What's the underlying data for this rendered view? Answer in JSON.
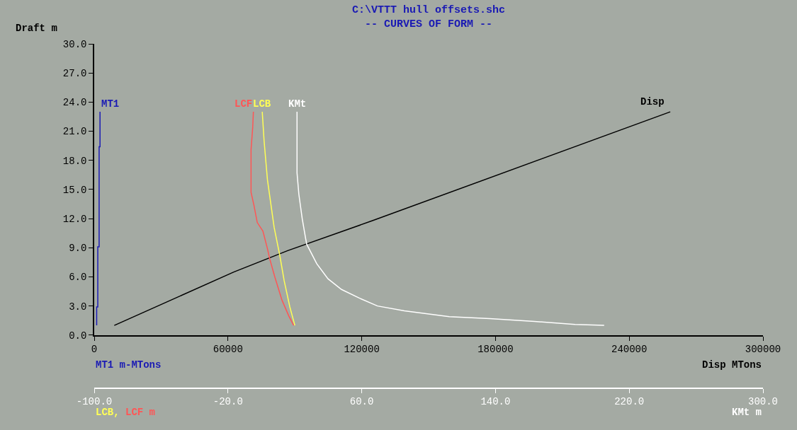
{
  "chart_data": {
    "type": "line",
    "title": "C:\\VTTT hull offsets.shc",
    "subtitle": "-- CURVES OF FORM --",
    "ylabel": "Draft m",
    "xlabel": "Disp MTons",
    "x2label": "KMt m",
    "annotations": [
      "MT1 m-MTons",
      "LCB, LCF m"
    ],
    "xlim": [
      0,
      300000
    ],
    "xticks": [
      0,
      60000,
      120000,
      180000,
      240000,
      300000
    ],
    "x2lim": [
      -100,
      300
    ],
    "x2ticks": [
      {
        "value": -100,
        "label": "-100.0"
      },
      {
        "value": -20,
        "label": "-20.0"
      },
      {
        "value": 60,
        "label": "60.0"
      },
      {
        "value": 140,
        "label": "140.0"
      },
      {
        "value": 220,
        "label": "220.0"
      },
      {
        "value": 300,
        "label": "300.0"
      }
    ],
    "ylim": [
      0,
      30
    ],
    "yticks": [
      {
        "value": 0,
        "label": "0.0"
      },
      {
        "value": 3,
        "label": "3.0"
      },
      {
        "value": 6,
        "label": "6.0"
      },
      {
        "value": 9,
        "label": "9.0"
      },
      {
        "value": 12,
        "label": "12.0"
      },
      {
        "value": 15,
        "label": "15.0"
      },
      {
        "value": 18,
        "label": "18.0"
      },
      {
        "value": 21,
        "label": "21.0"
      },
      {
        "value": 24,
        "label": "24.0"
      },
      {
        "value": 27,
        "label": "27.0"
      },
      {
        "value": 30,
        "label": "30.0"
      }
    ],
    "grid": false,
    "legend": false,
    "marker": "none",
    "line_style": "solid",
    "series": [
      {
        "name": "MT1",
        "color": "#1a1ab4",
        "x": [
          1100,
          1100,
          1600,
          1600,
          2200,
          2200,
          2600,
          2600
        ],
        "values": [
          1.0,
          2.9,
          2.9,
          9.1,
          9.1,
          19.4,
          19.4,
          23.0
        ]
      },
      {
        "name": "LCF",
        "color": "#ff5555",
        "axis": "x2",
        "x": [
          19.3,
          16.3,
          12.3,
          8.0,
          4.9,
          3.6,
          0.9,
          -2.5,
          -4.5,
          -6.2,
          -6.2,
          -5.2,
          -4.8
        ],
        "values": [
          1.0,
          2.0,
          3.6,
          6.0,
          7.9,
          8.9,
          10.7,
          11.6,
          13.4,
          14.7,
          19.1,
          21.4,
          23.0
        ]
      },
      {
        "name": "LCB",
        "color": "#ffff55",
        "axis": "x2",
        "x": [
          20.0,
          17.0,
          13.6,
          11.0,
          7.6,
          3.6,
          1.6,
          0.5
        ],
        "values": [
          1.0,
          2.9,
          5.6,
          8.2,
          11.1,
          16.0,
          20.0,
          23.0
        ]
      },
      {
        "name": "KMt",
        "color": "#ffffff",
        "axis": "x2",
        "x": [
          205.0,
          187.6,
          163.4,
          136.6,
          112.4,
          85.5,
          69.4,
          58.7,
          47.9,
          39.8,
          33.1,
          27.1,
          26.4,
          24.4,
          22.4,
          21.3,
          21.3
        ],
        "values": [
          1.0,
          1.1,
          1.4,
          1.7,
          1.9,
          2.5,
          3.0,
          3.8,
          4.7,
          5.8,
          7.35,
          9.35,
          10.0,
          12.0,
          14.5,
          16.7,
          23.0
        ]
      },
      {
        "name": "Disp",
        "color": "#000000",
        "x": [
          9000,
          62600,
          86800,
          125000,
          258400
        ],
        "values": [
          1.0,
          6.5,
          8.7,
          11.8,
          23.0
        ]
      }
    ]
  }
}
